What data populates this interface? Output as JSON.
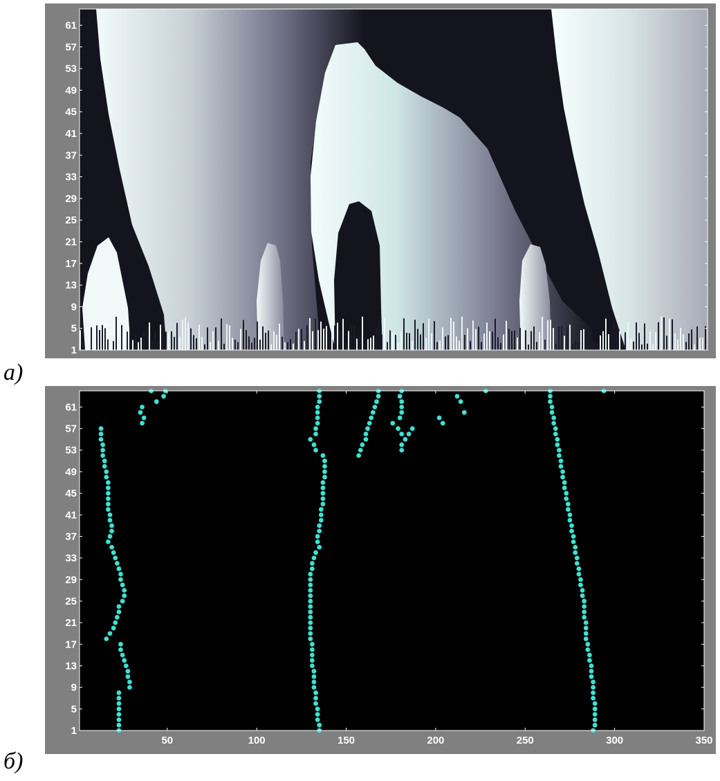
{
  "panel_labels": {
    "a": "а)",
    "b": "б)"
  },
  "colors": {
    "figure_bg": "#808080",
    "axes_bg_b": "#000000",
    "tick_text": "#ffffff",
    "marker": "#3fe0d0",
    "phase_dark": "#14141e",
    "phase_light": "#f2fbfb"
  },
  "chart_data": [
    {
      "type": "heatmap",
      "panel": "а)",
      "title": "",
      "xlabel": "",
      "ylabel": "",
      "xlim": [
        1,
        350
      ],
      "ylim": [
        1,
        64
      ],
      "yticks": [
        "1",
        "5",
        "9",
        "13",
        "17",
        "21",
        "25",
        "29",
        "33",
        "37",
        "41",
        "45",
        "49",
        "53",
        "57",
        "61"
      ],
      "xticks": [],
      "colormap": "bone (phase map, dark to light)",
      "grid": false
    },
    {
      "type": "scatter",
      "panel": "б)",
      "title": "",
      "xlabel": "",
      "ylabel": "",
      "xlim": [
        1,
        350
      ],
      "ylim": [
        1,
        64
      ],
      "yticks": [
        "1",
        "5",
        "9",
        "13",
        "17",
        "21",
        "25",
        "29",
        "33",
        "37",
        "41",
        "45",
        "49",
        "53",
        "57",
        "61"
      ],
      "xticks": [
        "50",
        "100",
        "150",
        "200",
        "250",
        "300",
        "350"
      ],
      "grid": false,
      "series": [
        {
          "points": [
            [
              23,
              1
            ],
            [
              23,
              2
            ],
            [
              23,
              3
            ],
            [
              23,
              4
            ],
            [
              23,
              5
            ],
            [
              23,
              6
            ],
            [
              23,
              7
            ],
            [
              23,
              8
            ],
            [
              29,
              9
            ],
            [
              29,
              10
            ],
            [
              28,
              11
            ],
            [
              28,
              12
            ],
            [
              27,
              13
            ],
            [
              26,
              14
            ],
            [
              25,
              15
            ],
            [
              24,
              16
            ],
            [
              24,
              17
            ],
            [
              16,
              18
            ],
            [
              18,
              19
            ],
            [
              20,
              20
            ],
            [
              21,
              21
            ],
            [
              22,
              22
            ],
            [
              23,
              23
            ],
            [
              23,
              24
            ],
            [
              25,
              25
            ],
            [
              26,
              26
            ],
            [
              26,
              27
            ],
            [
              25,
              28
            ],
            [
              24,
              29
            ],
            [
              24,
              30
            ],
            [
              23,
              31
            ],
            [
              22,
              32
            ],
            [
              21,
              33
            ],
            [
              20,
              34
            ],
            [
              19,
              35
            ],
            [
              17,
              36
            ],
            [
              18,
              37
            ],
            [
              19,
              38
            ],
            [
              19,
              39
            ],
            [
              18,
              40
            ],
            [
              18,
              41
            ],
            [
              17,
              42
            ],
            [
              17,
              43
            ],
            [
              17,
              44
            ],
            [
              17,
              45
            ],
            [
              17,
              46
            ],
            [
              17,
              47
            ],
            [
              16,
              48
            ],
            [
              16,
              49
            ],
            [
              15,
              50
            ],
            [
              15,
              51
            ],
            [
              14,
              52
            ],
            [
              14,
              53
            ],
            [
              14,
              54
            ],
            [
              13,
              55
            ],
            [
              13,
              56
            ],
            [
              13,
              57
            ]
          ]
        },
        {
          "points": [
            [
              36,
              58
            ],
            [
              37,
              59
            ],
            [
              35,
              60
            ],
            [
              36,
              61
            ],
            [
              44,
              62
            ],
            [
              48,
              63
            ],
            [
              49,
              64
            ],
            [
              41,
              64
            ]
          ]
        },
        {
          "points": [
            [
              135,
              1
            ],
            [
              135,
              2
            ],
            [
              134,
              3
            ],
            [
              134,
              4
            ],
            [
              134,
              5
            ],
            [
              133,
              6
            ],
            [
              133,
              7
            ],
            [
              133,
              8
            ],
            [
              132,
              9
            ],
            [
              132,
              10
            ],
            [
              132,
              11
            ],
            [
              132,
              12
            ],
            [
              131,
              13
            ],
            [
              131,
              14
            ],
            [
              131,
              15
            ],
            [
              131,
              16
            ],
            [
              131,
              17
            ],
            [
              130,
              18
            ],
            [
              130,
              19
            ],
            [
              130,
              20
            ],
            [
              130,
              21
            ],
            [
              130,
              22
            ],
            [
              130,
              23
            ],
            [
              130,
              24
            ],
            [
              130,
              25
            ],
            [
              130,
              26
            ],
            [
              130,
              27
            ],
            [
              130,
              28
            ],
            [
              130,
              29
            ],
            [
              130,
              30
            ],
            [
              131,
              31
            ],
            [
              131,
              32
            ],
            [
              132,
              33
            ],
            [
              133,
              34
            ],
            [
              135,
              35
            ],
            [
              134,
              36
            ],
            [
              134,
              37
            ],
            [
              135,
              38
            ],
            [
              135,
              39
            ],
            [
              136,
              40
            ],
            [
              136,
              41
            ],
            [
              136,
              42
            ],
            [
              137,
              43
            ],
            [
              137,
              44
            ],
            [
              137,
              45
            ],
            [
              137,
              46
            ],
            [
              137,
              47
            ],
            [
              138,
              48
            ],
            [
              138,
              49
            ],
            [
              138,
              50
            ],
            [
              138,
              51
            ],
            [
              137,
              52
            ],
            [
              133,
              53
            ],
            [
              132,
              54
            ],
            [
              130,
              55
            ],
            [
              133,
              56
            ],
            [
              133,
              57
            ],
            [
              134,
              58
            ],
            [
              134,
              59
            ],
            [
              134,
              60
            ],
            [
              134,
              61
            ],
            [
              135,
              62
            ],
            [
              135,
              63
            ],
            [
              135,
              64
            ]
          ]
        },
        {
          "points": [
            [
              157,
              52
            ],
            [
              158,
              53
            ],
            [
              159,
              54
            ],
            [
              161,
              55
            ],
            [
              161,
              56
            ],
            [
              162,
              57
            ],
            [
              163,
              58
            ],
            [
              164,
              59
            ],
            [
              165,
              60
            ],
            [
              166,
              61
            ],
            [
              167,
              62
            ],
            [
              168,
              63
            ],
            [
              168,
              64
            ]
          ]
        },
        {
          "points": [
            [
              181,
              53
            ],
            [
              181,
              54
            ],
            [
              183,
              55
            ],
            [
              185,
              56
            ],
            [
              187,
              57
            ],
            [
              181,
              56
            ],
            [
              179,
              57
            ],
            [
              176,
              58
            ],
            [
              180,
              59
            ],
            [
              181,
              60
            ],
            [
              181,
              61
            ],
            [
              181,
              62
            ],
            [
              180,
              63
            ],
            [
              181,
              64
            ]
          ]
        },
        {
          "points": [
            [
              202,
              59
            ],
            [
              204,
              58
            ],
            [
              212,
              63
            ],
            [
              214,
              62
            ],
            [
              216,
              60
            ],
            [
              228,
              64
            ],
            [
              294,
              64
            ]
          ]
        },
        {
          "points": [
            [
              288,
              1
            ],
            [
              289,
              2
            ],
            [
              289,
              3
            ],
            [
              289,
              4
            ],
            [
              289,
              5
            ],
            [
              289,
              6
            ],
            [
              288,
              7
            ],
            [
              288,
              8
            ],
            [
              288,
              9
            ],
            [
              288,
              10
            ],
            [
              287,
              11
            ],
            [
              287,
              12
            ],
            [
              287,
              13
            ],
            [
              286,
              14
            ],
            [
              286,
              15
            ],
            [
              285,
              16
            ],
            [
              285,
              17
            ],
            [
              284,
              18
            ],
            [
              284,
              19
            ],
            [
              284,
              20
            ],
            [
              284,
              21
            ],
            [
              283,
              22
            ],
            [
              283,
              23
            ],
            [
              283,
              24
            ],
            [
              283,
              25
            ],
            [
              282,
              26
            ],
            [
              282,
              27
            ],
            [
              281,
              28
            ],
            [
              281,
              29
            ],
            [
              280,
              30
            ],
            [
              280,
              31
            ],
            [
              279,
              32
            ],
            [
              279,
              33
            ],
            [
              278,
              34
            ],
            [
              278,
              35
            ],
            [
              277,
              36
            ],
            [
              277,
              37
            ],
            [
              276,
              38
            ],
            [
              276,
              39
            ],
            [
              275,
              40
            ],
            [
              275,
              41
            ],
            [
              274,
              42
            ],
            [
              274,
              43
            ],
            [
              273,
              44
            ],
            [
              273,
              45
            ],
            [
              272,
              46
            ],
            [
              272,
              47
            ],
            [
              271,
              48
            ],
            [
              271,
              49
            ],
            [
              270,
              50
            ],
            [
              270,
              51
            ],
            [
              269,
              52
            ],
            [
              269,
              53
            ],
            [
              268,
              54
            ],
            [
              268,
              55
            ],
            [
              267,
              56
            ],
            [
              267,
              57
            ],
            [
              266,
              58
            ],
            [
              266,
              59
            ],
            [
              265,
              60
            ],
            [
              265,
              61
            ],
            [
              264,
              62
            ],
            [
              264,
              63
            ],
            [
              264,
              64
            ]
          ]
        }
      ]
    }
  ]
}
